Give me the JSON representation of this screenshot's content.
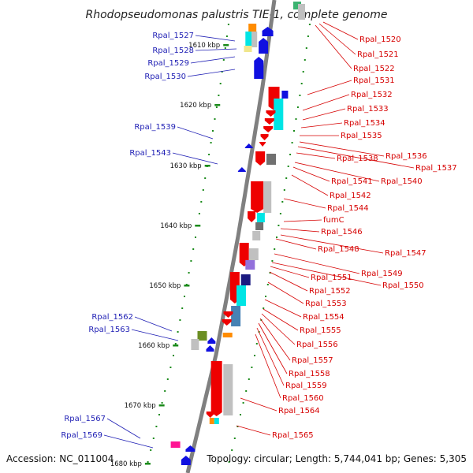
{
  "title": "Rhodopseudomonas palustris TIE-1, complete genome",
  "accession": "Accession: NC_011004",
  "topology": "Topology: circular; Length: 5,744,041 bp; Genes: 5,305",
  "ticks": [
    "1610 kbp",
    "1620 kbp",
    "1630 kbp",
    "1640 kbp",
    "1650 kbp",
    "1660 kbp",
    "1670 kbp",
    "1680 kbp"
  ],
  "left_labels": [
    "Rpal_1527",
    "Rpal_1528",
    "Rpal_1529",
    "Rpal_1530",
    "Rpal_1539",
    "Rpal_1543",
    "Rpal_1562",
    "Rpal_1563",
    "Rpal_1567",
    "Rpal_1569"
  ],
  "right_labels": [
    "Rpal_1520",
    "Rpal_1521",
    "Rpal_1522",
    "Rpal_1531",
    "Rpal_1532",
    "Rpal_1533",
    "Rpal_1534",
    "Rpal_1535",
    "Rpal_1536",
    "Rpal_1537",
    "Rpal_1538",
    "Rpal_1540",
    "Rpal_1541",
    "Rpal_1542",
    "Rpal_1544",
    "fumC",
    "Rpal_1546",
    "Rpal_1547",
    "Rpal_1548",
    "Rpal_1549",
    "Rpal_1550",
    "Rpal_1551",
    "Rpal_1552",
    "Rpal_1553",
    "Rpal_1554",
    "Rpal_1555",
    "Rpal_1556",
    "Rpal_1557",
    "Rpal_1558",
    "Rpal_1559",
    "Rpal_1560",
    "Rpal_1564",
    "Rpal_1565"
  ],
  "colors": {
    "backbone": "#808080",
    "forward_genes": "#1010e0",
    "reverse_genes": "#ee0000",
    "tick": "#1a8a1a",
    "left_label": "#1e1eb4",
    "right_label": "#d60000"
  }
}
